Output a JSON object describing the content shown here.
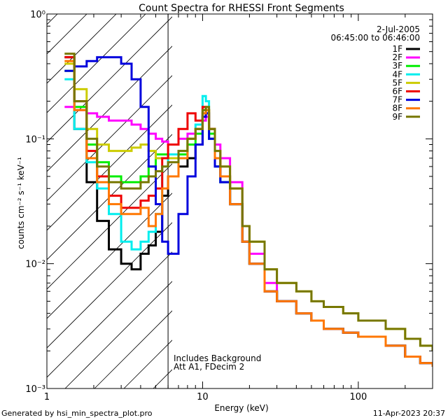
{
  "chart_data": {
    "type": "line",
    "title": "Count Spectra for RHESSI Front Segments",
    "xlabel": "Energy (keV)",
    "ylabel": "counts cm⁻² s⁻¹ keV⁻¹",
    "xscale": "log",
    "yscale": "log",
    "xlim": [
      1,
      300
    ],
    "ylim": [
      0.001,
      1
    ],
    "x_ticks": [
      {
        "value": 1,
        "label": "1"
      },
      {
        "value": 10,
        "label": "10"
      },
      {
        "value": 100,
        "label": "100"
      }
    ],
    "y_ticks": [
      {
        "value": 1,
        "label": "10⁰"
      },
      {
        "value": 0.1,
        "label": "10⁻¹"
      },
      {
        "value": 0.01,
        "label": "10⁻²"
      },
      {
        "value": 0.001,
        "label": "10⁻³"
      }
    ],
    "date": "2-Jul-2005",
    "time_range": "06:45:00 to 06:46:00",
    "hatched_region": {
      "x_max_keV": 6
    },
    "annotation": [
      "Includes Background",
      "Att A1, FDecim 2"
    ],
    "series": [
      {
        "name": "1F",
        "color": "#000000",
        "x": [
          1.3,
          1.5,
          1.8,
          2.1,
          2.5,
          3.0,
          3.5,
          4.0,
          4.5,
          5.0,
          5.5,
          6.0,
          7.0,
          8.0,
          9.0,
          10.0,
          10.5,
          11.0,
          12.0,
          13.0,
          15.0,
          18.0,
          20.0,
          25.0,
          30.0,
          40.0,
          50.0,
          60.0,
          80.0,
          100.0,
          150.0,
          200.0,
          250.0,
          300.0
        ],
        "y": [
          0.45,
          0.12,
          0.045,
          0.022,
          0.013,
          0.01,
          0.009,
          0.012,
          0.014,
          0.018,
          0.035,
          0.05,
          0.06,
          0.07,
          0.09,
          0.15,
          0.16,
          0.1,
          0.06,
          0.045,
          0.03,
          0.015,
          0.01,
          0.006,
          0.005,
          0.004,
          0.0035,
          0.003,
          0.0028,
          0.0026,
          0.0022,
          0.0018,
          0.0016,
          0.0015
        ]
      },
      {
        "name": "2F",
        "color": "#ff00ff",
        "x": [
          1.3,
          1.5,
          1.8,
          2.1,
          2.5,
          3.0,
          3.5,
          4.0,
          4.5,
          5.0,
          5.5,
          6.0,
          7.0,
          8.0,
          9.0,
          10.0,
          10.5,
          11.0,
          12.0,
          13.0,
          15.0,
          18.0,
          20.0,
          25.0,
          30.0,
          40.0,
          50.0,
          60.0,
          80.0,
          100.0,
          150.0,
          200.0,
          250.0,
          300.0
        ],
        "y": [
          0.18,
          0.17,
          0.16,
          0.15,
          0.14,
          0.14,
          0.13,
          0.12,
          0.11,
          0.1,
          0.095,
          0.09,
          0.1,
          0.11,
          0.12,
          0.14,
          0.15,
          0.12,
          0.09,
          0.07,
          0.045,
          0.02,
          0.012,
          0.007,
          0.005,
          0.004,
          0.0035,
          0.003,
          0.0028,
          0.0026,
          0.0022,
          0.0018,
          0.0016,
          0.0015
        ]
      },
      {
        "name": "3F",
        "color": "#00ee00",
        "x": [
          1.3,
          1.5,
          1.8,
          2.1,
          2.5,
          3.0,
          3.5,
          4.0,
          4.5,
          5.0,
          5.5,
          6.0,
          7.0,
          8.0,
          9.0,
          10.0,
          10.5,
          11.0,
          12.0,
          13.0,
          15.0,
          18.0,
          20.0,
          25.0,
          30.0,
          40.0,
          50.0,
          60.0,
          80.0,
          100.0,
          150.0,
          200.0,
          250.0,
          300.0
        ],
        "y": [
          0.35,
          0.18,
          0.09,
          0.065,
          0.05,
          0.045,
          0.045,
          0.05,
          0.06,
          0.075,
          0.075,
          0.07,
          0.075,
          0.09,
          0.11,
          0.16,
          0.17,
          0.11,
          0.07,
          0.05,
          0.03,
          0.015,
          0.01,
          0.006,
          0.005,
          0.004,
          0.0035,
          0.003,
          0.0028,
          0.0026,
          0.0022,
          0.0018,
          0.0016,
          0.0015
        ]
      },
      {
        "name": "4F",
        "color": "#00eeee",
        "x": [
          1.3,
          1.5,
          1.8,
          2.1,
          2.5,
          3.0,
          3.5,
          4.0,
          4.5,
          5.0,
          5.5,
          6.0,
          7.0,
          8.0,
          9.0,
          10.0,
          10.5,
          11.0,
          12.0,
          13.0,
          15.0,
          18.0,
          20.0,
          25.0,
          30.0,
          40.0,
          50.0,
          60.0,
          80.0,
          100.0,
          150.0,
          200.0,
          250.0,
          300.0
        ],
        "y": [
          0.3,
          0.12,
          0.065,
          0.04,
          0.025,
          0.015,
          0.013,
          0.015,
          0.018,
          0.025,
          0.06,
          0.075,
          0.08,
          0.1,
          0.13,
          0.22,
          0.2,
          0.1,
          0.06,
          0.045,
          0.03,
          0.015,
          0.01,
          0.006,
          0.005,
          0.004,
          0.0035,
          0.003,
          0.0028,
          0.0026,
          0.0022,
          0.0018,
          0.0016,
          0.0015
        ]
      },
      {
        "name": "5F",
        "color": "#cccc00",
        "x": [
          1.3,
          1.5,
          1.8,
          2.1,
          2.5,
          3.0,
          3.5,
          4.0,
          4.5,
          5.0,
          5.5,
          6.0,
          7.0,
          8.0,
          9.0,
          10.0,
          10.5,
          11.0,
          12.0,
          13.0,
          15.0,
          18.0,
          20.0,
          25.0,
          30.0,
          40.0,
          50.0,
          60.0,
          80.0,
          100.0,
          150.0,
          200.0,
          250.0,
          300.0
        ],
        "y": [
          0.4,
          0.25,
          0.12,
          0.09,
          0.08,
          0.08,
          0.085,
          0.09,
          0.08,
          0.07,
          0.07,
          0.07,
          0.08,
          0.1,
          0.12,
          0.16,
          0.17,
          0.12,
          0.08,
          0.06,
          0.04,
          0.02,
          0.015,
          0.009,
          0.007,
          0.006,
          0.005,
          0.0045,
          0.004,
          0.0035,
          0.003,
          0.0025,
          0.0022,
          0.002
        ]
      },
      {
        "name": "6F",
        "color": "#ee0000",
        "x": [
          1.3,
          1.5,
          1.8,
          2.1,
          2.5,
          3.0,
          3.5,
          4.0,
          4.5,
          5.0,
          5.5,
          6.0,
          7.0,
          8.0,
          9.0,
          10.0,
          10.5,
          11.0,
          12.0,
          13.0,
          15.0,
          18.0,
          20.0,
          25.0,
          30.0,
          40.0,
          50.0,
          60.0,
          80.0,
          100.0,
          150.0,
          200.0,
          250.0,
          300.0
        ],
        "y": [
          0.45,
          0.2,
          0.08,
          0.05,
          0.035,
          0.028,
          0.028,
          0.032,
          0.035,
          0.04,
          0.07,
          0.09,
          0.12,
          0.16,
          0.14,
          0.18,
          0.17,
          0.12,
          0.07,
          0.05,
          0.03,
          0.015,
          0.01,
          0.006,
          0.005,
          0.004,
          0.0035,
          0.003,
          0.0028,
          0.0026,
          0.0022,
          0.0018,
          0.0016,
          0.0015
        ]
      },
      {
        "name": "7F",
        "color": "#0000dd",
        "x": [
          1.3,
          1.5,
          1.8,
          2.1,
          2.5,
          3.0,
          3.5,
          4.0,
          4.5,
          5.0,
          5.5,
          6.0,
          7.0,
          8.0,
          9.0,
          10.0,
          10.5,
          11.0,
          12.0,
          13.0,
          15.0,
          18.0,
          20.0,
          25.0,
          30.0,
          40.0,
          50.0,
          60.0,
          80.0,
          100.0,
          150.0,
          200.0,
          250.0,
          300.0
        ],
        "y": [
          0.35,
          0.38,
          0.42,
          0.45,
          0.45,
          0.4,
          0.3,
          0.18,
          0.06,
          0.03,
          0.015,
          0.012,
          0.025,
          0.05,
          0.09,
          0.15,
          0.16,
          0.1,
          0.06,
          0.045,
          0.03,
          0.015,
          0.01,
          0.006,
          0.005,
          0.004,
          0.0035,
          0.003,
          0.0028,
          0.0026,
          0.0022,
          0.0018,
          0.0016,
          0.0015
        ]
      },
      {
        "name": "8F",
        "color": "#ff7700",
        "x": [
          1.3,
          1.5,
          1.8,
          2.1,
          2.5,
          3.0,
          3.5,
          4.0,
          4.5,
          5.0,
          5.5,
          6.0,
          7.0,
          8.0,
          9.0,
          10.0,
          10.5,
          11.0,
          12.0,
          13.0,
          15.0,
          18.0,
          20.0,
          25.0,
          30.0,
          40.0,
          50.0,
          60.0,
          80.0,
          100.0,
          150.0,
          200.0,
          250.0,
          300.0
        ],
        "y": [
          0.42,
          0.17,
          0.07,
          0.045,
          0.03,
          0.025,
          0.025,
          0.028,
          0.02,
          0.025,
          0.04,
          0.05,
          0.07,
          0.1,
          0.12,
          0.16,
          0.17,
          0.12,
          0.07,
          0.05,
          0.03,
          0.015,
          0.01,
          0.006,
          0.005,
          0.004,
          0.0035,
          0.003,
          0.0028,
          0.0026,
          0.0022,
          0.0018,
          0.0016,
          0.0015
        ]
      },
      {
        "name": "9F",
        "color": "#777700",
        "x": [
          1.3,
          1.5,
          1.8,
          2.1,
          2.5,
          3.0,
          3.5,
          4.0,
          4.5,
          5.0,
          5.5,
          6.0,
          7.0,
          8.0,
          9.0,
          10.0,
          10.5,
          11.0,
          12.0,
          13.0,
          15.0,
          18.0,
          20.0,
          25.0,
          30.0,
          40.0,
          50.0,
          60.0,
          80.0,
          100.0,
          150.0,
          200.0,
          250.0,
          300.0
        ],
        "y": [
          0.48,
          0.2,
          0.1,
          0.06,
          0.045,
          0.04,
          0.04,
          0.045,
          0.05,
          0.055,
          0.06,
          0.065,
          0.08,
          0.1,
          0.12,
          0.17,
          0.18,
          0.12,
          0.08,
          0.06,
          0.04,
          0.02,
          0.015,
          0.009,
          0.007,
          0.006,
          0.005,
          0.0045,
          0.004,
          0.0035,
          0.003,
          0.0025,
          0.0022,
          0.002
        ]
      }
    ]
  },
  "footer": {
    "generated_by": "Generated by hsi_min_spectra_plot.pro",
    "timestamp": "11-Apr-2023 20:37"
  }
}
